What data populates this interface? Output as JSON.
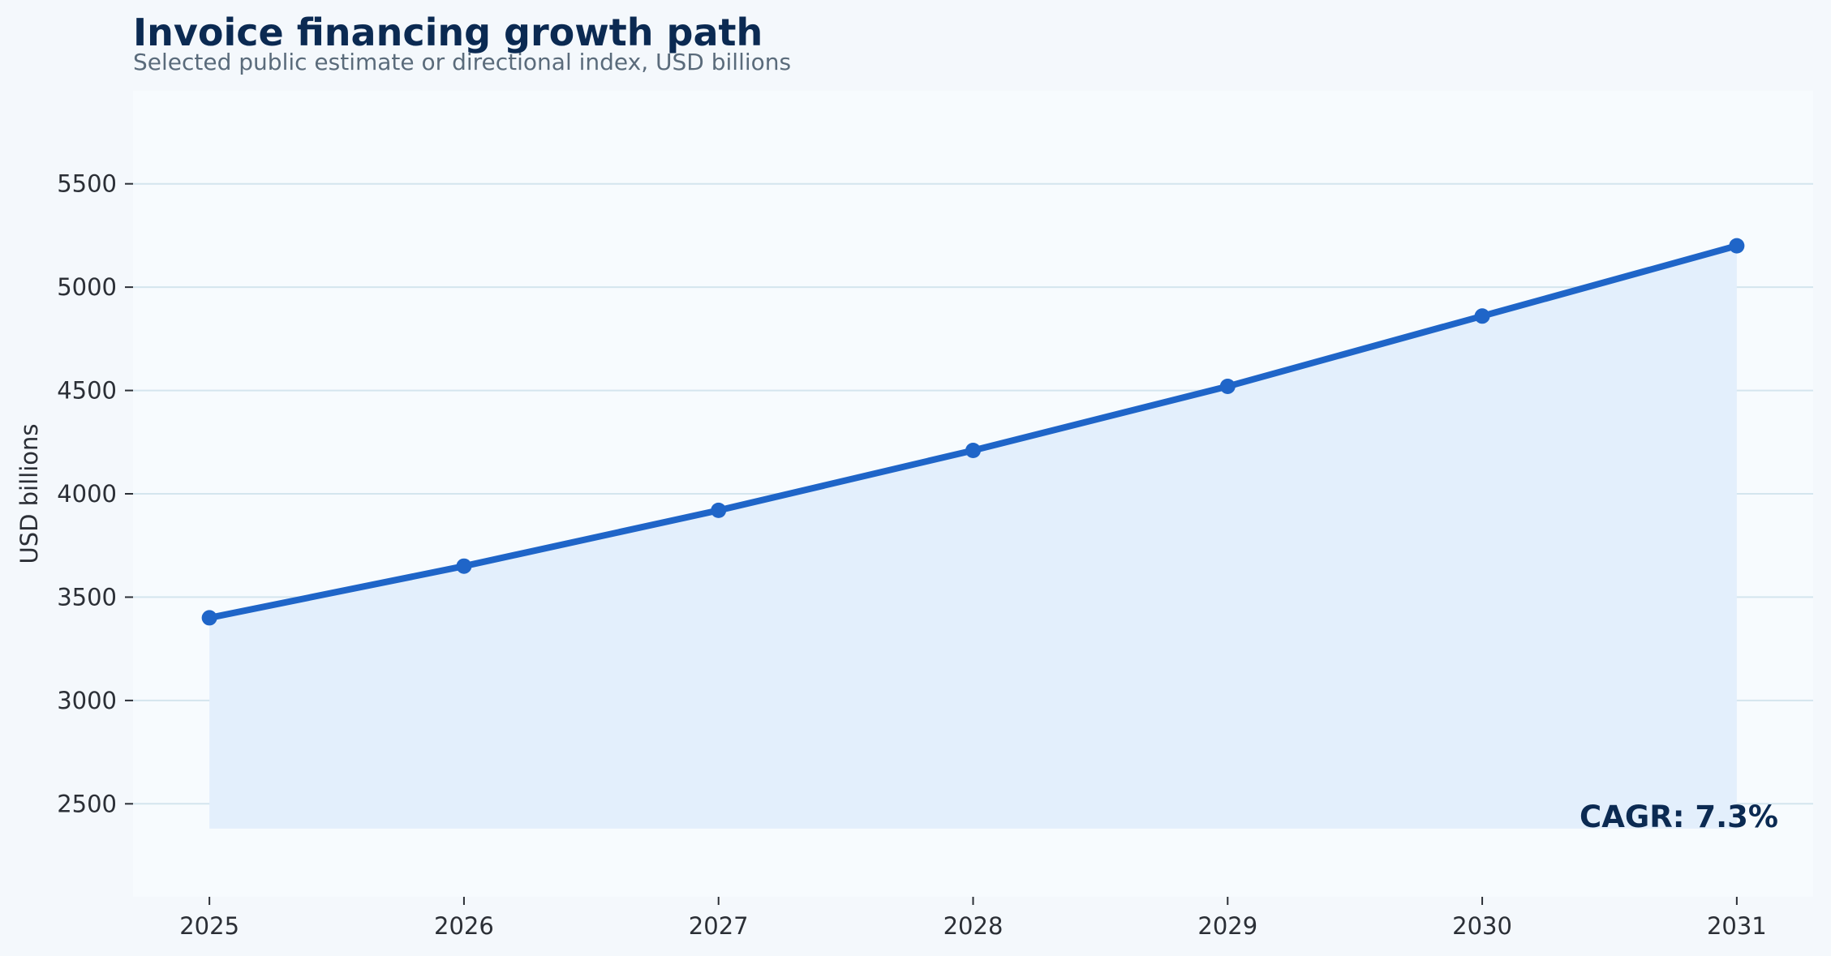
{
  "chart_data": {
    "type": "line",
    "title": "Invoice financing growth path",
    "subtitle": "Selected public estimate or directional index, USD billions",
    "xlabel": "",
    "ylabel": "USD billions",
    "x": [
      2025,
      2026,
      2027,
      2028,
      2029,
      2030,
      2031
    ],
    "series": [
      {
        "values": [
          3400,
          3650,
          3920,
          4210,
          4520,
          4860,
          5200
        ]
      }
    ],
    "yticks": [
      2500,
      3000,
      3500,
      4000,
      4500,
      5000,
      5500
    ],
    "ylim": [
      2050,
      5950
    ],
    "xlim": [
      2024.7,
      2031.3
    ],
    "area_fill": true,
    "area_baseline": 2380,
    "grid": "horizontal",
    "annotation": "CAGR: 7.3%",
    "colors": {
      "line": "#1f65c8",
      "area": "#e3effc",
      "plot_background": "#f7fbfe",
      "page_background": "#f4f8fc",
      "grid": "#d4e5ee",
      "title": "#0b2a52",
      "subtitle": "#5a6b7b",
      "ticks": "#2b2f36"
    }
  }
}
